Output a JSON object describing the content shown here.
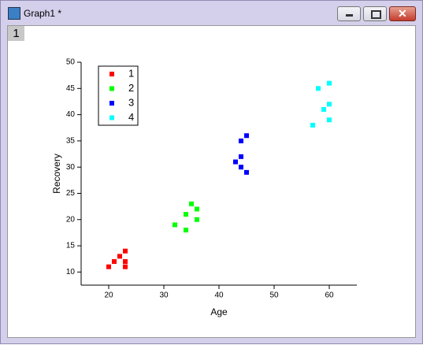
{
  "window": {
    "title": "Graph1 *",
    "layer_tag": "1"
  },
  "chart_data": {
    "type": "scatter",
    "x_label": "Age",
    "y_label": "Recovery",
    "xlim": [
      15,
      65
    ],
    "xticks": [
      20,
      30,
      40,
      50,
      60
    ],
    "ylim": [
      7.5,
      50
    ],
    "yticks": [
      10,
      15,
      20,
      25,
      30,
      35,
      40,
      45,
      50
    ],
    "legend": "top-left",
    "series": [
      {
        "name": "1",
        "color": "#ff0000",
        "x": [
          20,
          21,
          22,
          23,
          23,
          23
        ],
        "values": [
          11,
          12,
          13,
          14,
          12,
          11
        ]
      },
      {
        "name": "2",
        "color": "#00ff00",
        "x": [
          32,
          34,
          35,
          36,
          36,
          34
        ],
        "values": [
          19,
          21,
          23,
          22,
          20,
          18
        ]
      },
      {
        "name": "3",
        "color": "#0000ff",
        "x": [
          45,
          44,
          44,
          43,
          44,
          45
        ],
        "values": [
          36,
          35,
          32,
          31,
          30,
          29
        ]
      },
      {
        "name": "4",
        "color": "#00ffff",
        "x": [
          60,
          58,
          60,
          59,
          60,
          57
        ],
        "values": [
          46,
          45,
          42,
          41,
          39,
          38
        ]
      }
    ]
  }
}
